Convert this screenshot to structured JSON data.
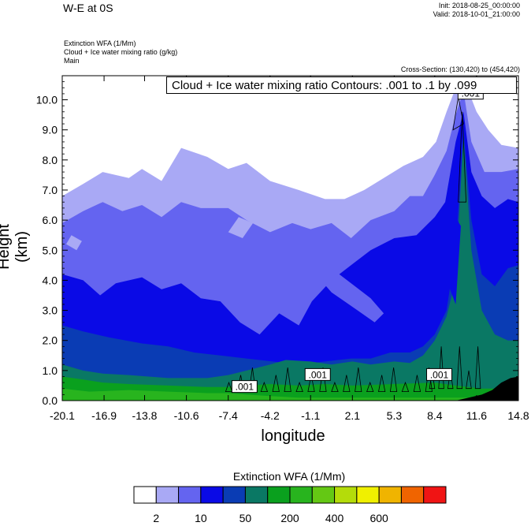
{
  "header": {
    "title": "W-E at 0S",
    "init": "Init: 2018-08-25_00:00:00",
    "valid": "Valid: 2018-10-01_21:00:00",
    "var1": "Extinction WFA   (1/Mm)",
    "var2": "Cloud + Ice water mixing ratio   (g/kg)",
    "var3": "Main",
    "cross_section": "Cross-Section: (130,420) to (454,420)"
  },
  "contour_box": "Cloud + Ice water mixing ratio Contours: .001 to .1 by .099",
  "contour_labels": [
    ".001",
    ".001",
    ".001",
    ".001"
  ],
  "colorbar": {
    "title": "Extinction WFA  (1/Mm)",
    "colors": [
      "#ffffff",
      "#a9a9f5",
      "#6464f0",
      "#0a0ae6",
      "#0a3cb4",
      "#0a7864",
      "#0aa01e",
      "#28b41e",
      "#64c814",
      "#b4dc0a",
      "#f0f000",
      "#f0b400",
      "#f06400",
      "#f01414"
    ],
    "labels": [
      "2",
      "10",
      "50",
      "200",
      "400",
      "600"
    ],
    "label_boundaries": [
      1,
      3,
      5,
      7,
      9,
      11
    ]
  },
  "chart_data": {
    "type": "heatmap",
    "title": "W-E at 0S",
    "xlabel": "longitude",
    "ylabel": "Height (km)",
    "xlim": [
      -20.1,
      14.8
    ],
    "ylim": [
      0,
      10.8
    ],
    "x_ticks": [
      "-20.1",
      "-16.9",
      "-13.8",
      "-10.6",
      "-7.4",
      "-4.2",
      "-1.1",
      "2.1",
      "5.3",
      "8.4",
      "11.6",
      "14.8"
    ],
    "y_ticks": [
      "0.0",
      "1.0",
      "2.0",
      "3.0",
      "4.0",
      "5.0",
      "6.0",
      "7.0",
      "8.0",
      "9.0",
      "10.0"
    ],
    "colors": {
      "white": "#ffffff",
      "lightblue": "#a9a9f5",
      "medblue": "#6464f0",
      "blue": "#0a0ae6",
      "darkblue": "#0a3cb4",
      "teal": "#0a7864",
      "green": "#0aa01e",
      "lightgreen": "#28b41e",
      "terrain": "#000000"
    }
  }
}
